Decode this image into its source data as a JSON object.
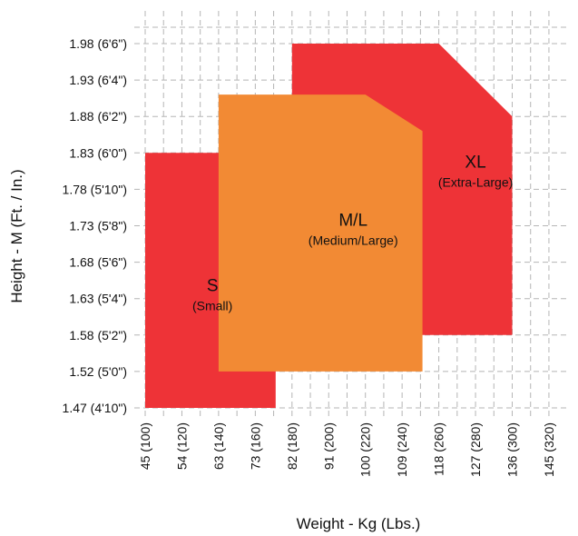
{
  "chart_data": {
    "type": "area",
    "xlabel": "Weight - Kg (Lbs.)",
    "ylabel": "Height - M (Ft. / In.)",
    "x_ticks": [
      {
        "value": 45,
        "label": "45 (100)"
      },
      {
        "value": 54,
        "label": "54 (120)"
      },
      {
        "value": 63,
        "label": "63 (140)"
      },
      {
        "value": 73,
        "label": "73 (160)"
      },
      {
        "value": 82,
        "label": "82 (180)"
      },
      {
        "value": 91,
        "label": "91 (200)"
      },
      {
        "value": 100,
        "label": "100 (220)"
      },
      {
        "value": 109,
        "label": "109 (240)"
      },
      {
        "value": 118,
        "label": "118 (260)"
      },
      {
        "value": 127,
        "label": "127 (280)"
      },
      {
        "value": 136,
        "label": "136 (300)"
      },
      {
        "value": 145,
        "label": "145 (320)"
      }
    ],
    "y_ticks": [
      {
        "value": 1.47,
        "label": "1.47 (4'10\")"
      },
      {
        "value": 1.52,
        "label": "1.52 (5'0\")"
      },
      {
        "value": 1.58,
        "label": "1.58 (5'2\")"
      },
      {
        "value": 1.63,
        "label": "1.63 (5'4\")"
      },
      {
        "value": 1.68,
        "label": "1.68 (5'6\")"
      },
      {
        "value": 1.73,
        "label": "1.73 (5'8\")"
      },
      {
        "value": 1.78,
        "label": "1.78 (5'10\")"
      },
      {
        "value": 1.83,
        "label": "1.83 (6'0\")"
      },
      {
        "value": 1.88,
        "label": "1.88 (6'2\")"
      },
      {
        "value": 1.93,
        "label": "1.93 (6'4\")"
      },
      {
        "value": 1.98,
        "label": "1.98 (6'6\")"
      }
    ],
    "grid": true,
    "zones": [
      {
        "key": "xl",
        "name": "XL",
        "sublabel": "(Extra-Large)",
        "color": "#EE3337",
        "outline": [
          [
            82,
            1.58
          ],
          [
            82,
            1.98
          ],
          [
            118,
            1.98
          ],
          [
            136,
            1.88
          ],
          [
            136,
            1.58
          ]
        ],
        "label_at": [
          127,
          1.81
        ]
      },
      {
        "key": "s",
        "name": "S",
        "sublabel": "(Small)",
        "color": "#EE3337",
        "outline": [
          [
            45,
            1.47
          ],
          [
            45,
            1.83
          ],
          [
            63,
            1.83
          ],
          [
            78,
            1.76
          ],
          [
            78,
            1.47
          ]
        ],
        "label_at": [
          61.5,
          1.64
        ]
      },
      {
        "key": "ml",
        "name": "M/L",
        "sublabel": "(Medium/Large)",
        "color": "#F28A34",
        "outline": [
          [
            63,
            1.52
          ],
          [
            63,
            1.91
          ],
          [
            100,
            1.91
          ],
          [
            114,
            1.86
          ],
          [
            114,
            1.52
          ]
        ],
        "label_at": [
          97,
          1.73
        ]
      }
    ]
  }
}
